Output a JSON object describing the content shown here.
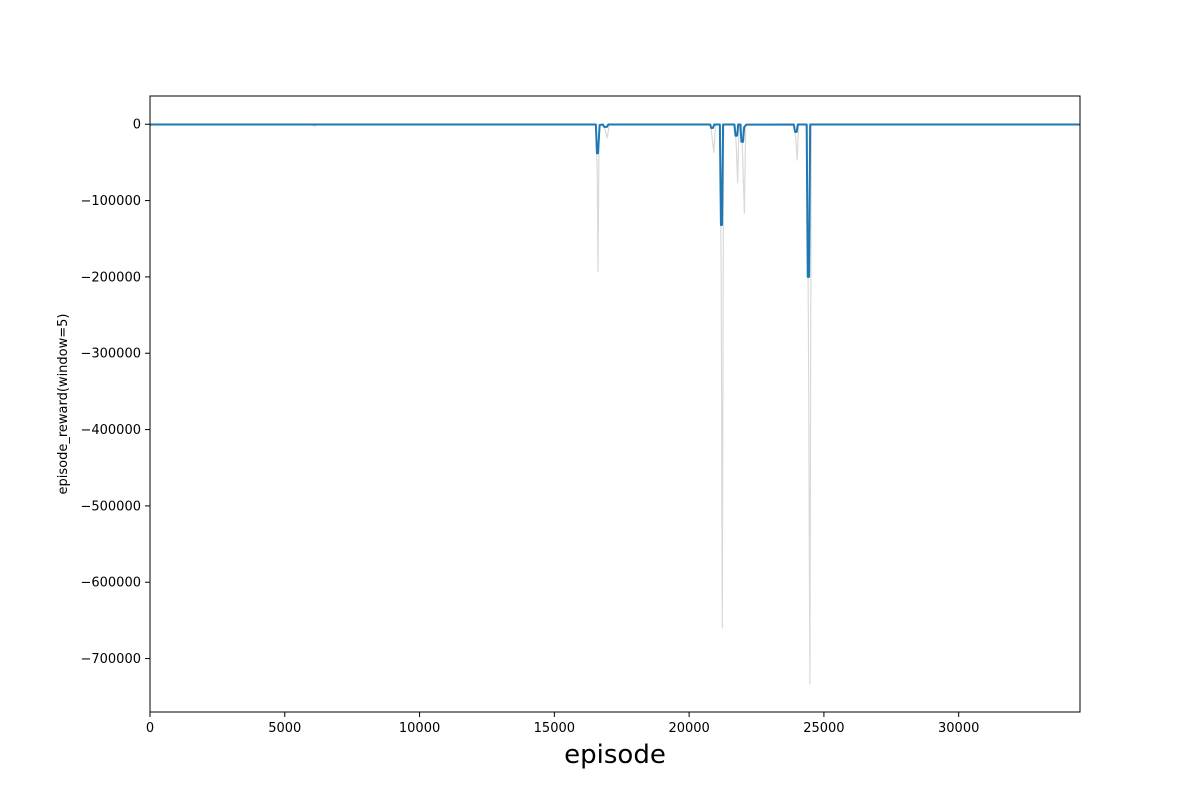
{
  "chart_data": {
    "type": "line",
    "title": "",
    "xlabel": "episode",
    "ylabel": "episode_reward(window=5)",
    "xlim": [
      0,
      34500
    ],
    "ylim": [
      -770000,
      37000
    ],
    "x_ticks": [
      0,
      5000,
      10000,
      15000,
      20000,
      25000,
      30000
    ],
    "x_tick_labels": [
      "0",
      "5000",
      "10000",
      "15000",
      "20000",
      "25000",
      "30000"
    ],
    "y_ticks": [
      0,
      -100000,
      -200000,
      -300000,
      -400000,
      -500000,
      -600000,
      -700000
    ],
    "y_tick_labels": [
      "0",
      "−100000",
      "−200000",
      "−300000",
      "−400000",
      "−500000",
      "−600000",
      "−700000"
    ],
    "grid": false,
    "legend": "none",
    "series": [
      {
        "role": "raw",
        "color": "#d9d9d9",
        "points": [
          [
            0,
            -500
          ],
          [
            6000,
            -500
          ],
          [
            6100,
            -2500
          ],
          [
            6200,
            -500
          ],
          [
            16540,
            -500
          ],
          [
            16590,
            -60000
          ],
          [
            16620,
            -193000
          ],
          [
            16660,
            -500
          ],
          [
            16800,
            -500
          ],
          [
            16880,
            -7000
          ],
          [
            16960,
            -18000
          ],
          [
            17040,
            -500
          ],
          [
            20800,
            -500
          ],
          [
            20860,
            -20000
          ],
          [
            20920,
            -37000
          ],
          [
            20980,
            -500
          ],
          [
            21140,
            -500
          ],
          [
            21190,
            -200000
          ],
          [
            21230,
            -660000
          ],
          [
            21280,
            -500
          ],
          [
            21700,
            -500
          ],
          [
            21750,
            -30000
          ],
          [
            21800,
            -77000
          ],
          [
            21850,
            -500
          ],
          [
            21950,
            -500
          ],
          [
            22000,
            -60000
          ],
          [
            22050,
            -117000
          ],
          [
            22100,
            -500
          ],
          [
            23900,
            -500
          ],
          [
            23960,
            -20000
          ],
          [
            24010,
            -47000
          ],
          [
            24060,
            -500
          ],
          [
            24380,
            -500
          ],
          [
            24430,
            -300000
          ],
          [
            24480,
            -733000
          ],
          [
            24530,
            -500
          ],
          [
            34500,
            -500
          ]
        ]
      },
      {
        "role": "smoothed",
        "color": "#1f77b4",
        "points": [
          [
            0,
            -300
          ],
          [
            16540,
            -300
          ],
          [
            16580,
            -38000
          ],
          [
            16620,
            -38000
          ],
          [
            16680,
            -1000
          ],
          [
            16800,
            -300
          ],
          [
            16850,
            -3500
          ],
          [
            16950,
            -3500
          ],
          [
            17000,
            -300
          ],
          [
            20780,
            -300
          ],
          [
            20820,
            -5000
          ],
          [
            20880,
            -5000
          ],
          [
            20930,
            -300
          ],
          [
            21140,
            -300
          ],
          [
            21180,
            -132000
          ],
          [
            21220,
            -132000
          ],
          [
            21260,
            -300
          ],
          [
            21680,
            -300
          ],
          [
            21720,
            -15000
          ],
          [
            21780,
            -15000
          ],
          [
            21820,
            -300
          ],
          [
            21900,
            -300
          ],
          [
            21940,
            -23000
          ],
          [
            22000,
            -23000
          ],
          [
            22040,
            -4000
          ],
          [
            22120,
            -500
          ],
          [
            23880,
            -300
          ],
          [
            23930,
            -10000
          ],
          [
            23990,
            -10000
          ],
          [
            24030,
            -300
          ],
          [
            24360,
            -300
          ],
          [
            24400,
            -200000
          ],
          [
            24450,
            -200000
          ],
          [
            24490,
            -300
          ],
          [
            34500,
            -300
          ]
        ]
      }
    ]
  }
}
